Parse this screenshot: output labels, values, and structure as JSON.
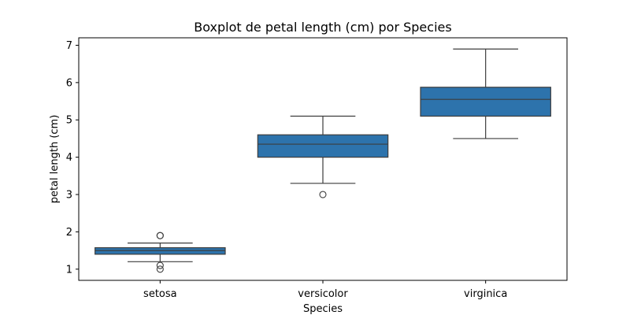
{
  "chart_data": {
    "type": "boxplot",
    "title": "Boxplot de petal length (cm) por Species",
    "xlabel": "Species",
    "ylabel": "petal length (cm)",
    "ylim": [
      0.7,
      7.2
    ],
    "yticks": [
      1,
      2,
      3,
      4,
      5,
      6,
      7
    ],
    "categories": [
      "setosa",
      "versicolor",
      "virginica"
    ],
    "box_color": "#2d73ac",
    "line_color": "#3d3d3d",
    "grid": false,
    "boxes": [
      {
        "category": "setosa",
        "whisker_low": 1.2,
        "q1": 1.4,
        "median": 1.5,
        "q3": 1.575,
        "whisker_high": 1.7,
        "outliers": [
          1.0,
          1.1,
          1.9,
          1.9
        ]
      },
      {
        "category": "versicolor",
        "whisker_low": 3.3,
        "q1": 4.0,
        "median": 4.35,
        "q3": 4.6,
        "whisker_high": 5.1,
        "outliers": [
          3.0
        ]
      },
      {
        "category": "virginica",
        "whisker_low": 4.5,
        "q1": 5.1,
        "median": 5.55,
        "q3": 5.875,
        "whisker_high": 6.9,
        "outliers": []
      }
    ]
  }
}
